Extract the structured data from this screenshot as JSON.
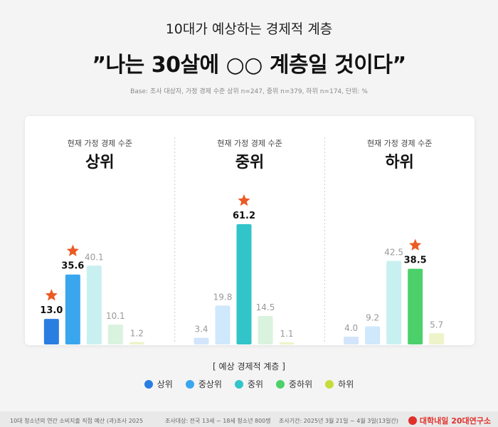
{
  "header": {
    "subtitle": "10대가 예상하는 경제적 계층",
    "title": "”나는 30살에 ○○ 계층일 것이다”",
    "base_note": "Base: 조사 대상자, 가정 경제 수준 상위 n=247, 중위 n=379, 하위 n=174, 단위: %"
  },
  "legend": {
    "title": "[ 예상 경제적 계층 ]",
    "items": [
      {
        "label": "상위",
        "color": "#2a7de1"
      },
      {
        "label": "중상위",
        "color": "#3aa6ee"
      },
      {
        "label": "중위",
        "color": "#31c4c9"
      },
      {
        "label": "중하위",
        "color": "#4cd06a"
      },
      {
        "label": "하위",
        "color": "#c6dc3c"
      }
    ]
  },
  "chart_data": {
    "type": "bar",
    "unit": "%",
    "categories": [
      "상위",
      "중상위",
      "중위",
      "중하위",
      "하위"
    ],
    "groups": [
      {
        "label_top": "현재 가정 경제 수준",
        "label": "상위",
        "values": [
          13.0,
          35.6,
          40.1,
          10.1,
          1.2
        ],
        "value_labels": [
          "13.0",
          "35.6",
          "40.1",
          "10.1",
          "1.2"
        ],
        "highlight": [
          0,
          1
        ],
        "colors": [
          "#2a7de1",
          "#3aa6ee",
          "#c9f0f0",
          "#d9f3de",
          "#eef3c9"
        ]
      },
      {
        "label_top": "현재 가정 경제 수준",
        "label": "중위",
        "values": [
          3.4,
          19.8,
          61.2,
          14.5,
          1.1
        ],
        "value_labels": [
          "3.4",
          "19.8",
          "61.2",
          "14.5",
          "1.1"
        ],
        "highlight": [
          2
        ],
        "colors": [
          "#d2e5fa",
          "#cfe8fb",
          "#31c4c9",
          "#d9f3de",
          "#eef3c9"
        ]
      },
      {
        "label_top": "현재 가정 경제 수준",
        "label": "하위",
        "values": [
          4.0,
          9.2,
          42.5,
          38.5,
          5.7
        ],
        "value_labels": [
          "4.0",
          "9.2",
          "42.5",
          "38.5",
          "5.7"
        ],
        "highlight": [
          3
        ],
        "colors": [
          "#d2e5fa",
          "#cfe8fb",
          "#c9f0f0",
          "#4cd06a",
          "#eef3c9"
        ]
      }
    ],
    "ylim": [
      0,
      70
    ],
    "grid": false,
    "legend_position": "bottom"
  },
  "footer": {
    "survey": "10대 청소년의 연간 소비지출 직접 예산 (과)조사 2025",
    "target": "조사대상: 전국 13세 ~ 18세 청소년 800명",
    "period": "조사기간: 2025년 3월 21일 ~ 4월 3일(13일간)",
    "brand": "대학내일 20대연구소"
  }
}
